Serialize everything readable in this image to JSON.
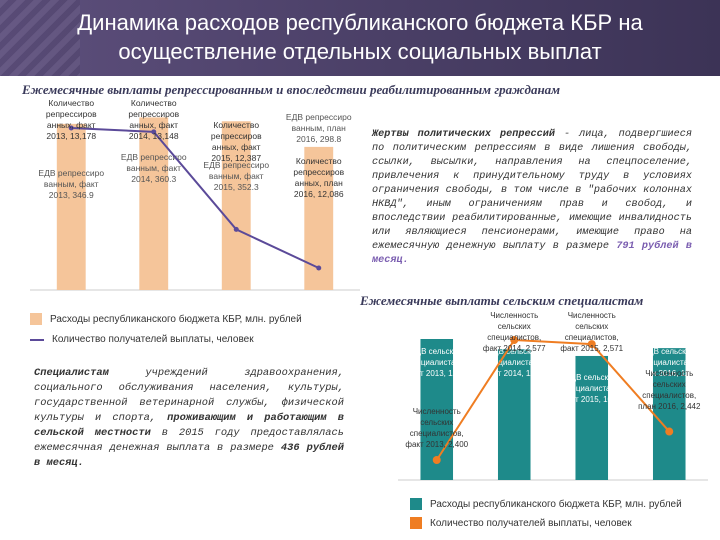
{
  "header": {
    "title": "Динамика расходов республиканского бюджета КБР на осуществление отдельных социальных выплат"
  },
  "section1": {
    "title": "Ежемесячные выплаты репрессированным и впоследствии реабилитированным гражданам",
    "chart_labels": {
      "bar_2013": "ЕДВ репрессиро ванным, факт 2013, 346.9",
      "bar_2014": "ЕДВ репрессиро ванным, факт 2014, 360.3",
      "bar_2015": "ЕДВ репрессиро ванным, факт 2015, 352.3",
      "bar_2016": "ЕДВ репрессиро ванным, план 2016, 298.8",
      "cnt_2013": "Количество репрессиров анных, факт 2013, 13,178",
      "cnt_2014": "Количество репрессиров анных, факт 2014, 13,148",
      "cnt_2015": "Количество репрессиров анных, факт 2015, 12,387",
      "cnt_2016": "Количество репрессиров анных, план 2016, 12,086"
    },
    "legend": {
      "bar_label": "Расходы республиканского бюджета КБР, млн. рублей",
      "line_label": "Количество получателей выплаты, человек"
    },
    "paragraph": {
      "term": "Жертвы политических репрессий",
      "text": " - лица, подвергшиеся по политическим репрессиям в виде лишения свободы, ссылки, высылки, направления на спецпоселение, привлечения к принудительному труду в условиях ограничения свободы, в том числе в \"рабочих колоннах НКВД\", иным ограничениям прав и свобод, и впоследствии реабилитированные, имеющие инвалидность или являющиеся пенсионерами, имеющие право на ежемесячную денежную выплату в размере ",
      "amount": "791 рублей в месяц."
    }
  },
  "section2": {
    "title": "Ежемесячные выплаты сельским специалистам",
    "chart_labels": {
      "bar_2013": "ЕДВ сельским специалиста м, факт 2013, 122.2",
      "bar_2014": "ЕДВ сельским специалиста м, факт 2014, 113.3",
      "bar_2015": "ЕДВ сельским специалиста м, факт 2015, 107.5",
      "bar_2016": "ЕДВ сельским специалиста м, план 2016, 114.3",
      "cnt_2013": "Численность сельских специалистов, факт 2013, 2,400",
      "cnt_2014": "Численность сельских специалистов, факт 2014, 2,577",
      "cnt_2015": "Численность сельских специалистов, факт 2015, 2,571",
      "cnt_2016": "Численность сельских специалистов, план 2016, 2,442"
    },
    "legend": {
      "bar_label": "Расходы республиканского бюджета КБР, млн. рублей",
      "line_label": "Количество получателей выплаты, человек"
    },
    "paragraph": {
      "term": "Специалистам",
      "text": " учреждений здравоохранения, социального обслуживания населения, культуры, государственной ветеринарной службы, физической культуры и спорта, ",
      "emph": "проживающим и работающим в сельской местности",
      "text2": " в 2015 году предоставлялась ежемесячная денежная выплата в размере ",
      "amount": "436 рублей в месяц."
    }
  },
  "chart_data": [
    {
      "type": "bar",
      "title": "Ежемесячные выплаты репрессированным и впоследствии реабилитированным гражданам",
      "categories": [
        "факт 2013",
        "факт 2014",
        "факт 2015",
        "план 2016"
      ],
      "series": [
        {
          "name": "Расходы республиканского бюджета КБР, млн. рублей",
          "values": [
            346.9,
            360.3,
            352.3,
            298.8
          ],
          "color": "#f5c59a"
        },
        {
          "name": "Количество получателей выплаты, человек",
          "values": [
            13178,
            13148,
            12387,
            12086
          ],
          "color": "#5b4a99"
        }
      ],
      "ylim": [
        0,
        380
      ]
    },
    {
      "type": "bar",
      "title": "Ежемесячные выплаты сельским специалистам",
      "categories": [
        "факт 2013",
        "факт 2014",
        "факт 2015",
        "план 2016"
      ],
      "series": [
        {
          "name": "Расходы республиканского бюджета КБР, млн. рублей",
          "values": [
            122.2,
            113.3,
            107.5,
            114.3
          ],
          "color": "#1e8a8a"
        },
        {
          "name": "Количество получателей выплаты, человек",
          "values": [
            2400,
            2577,
            2571,
            2442
          ],
          "color": "#ef7d22"
        }
      ],
      "ylim": [
        0,
        130
      ]
    }
  ]
}
